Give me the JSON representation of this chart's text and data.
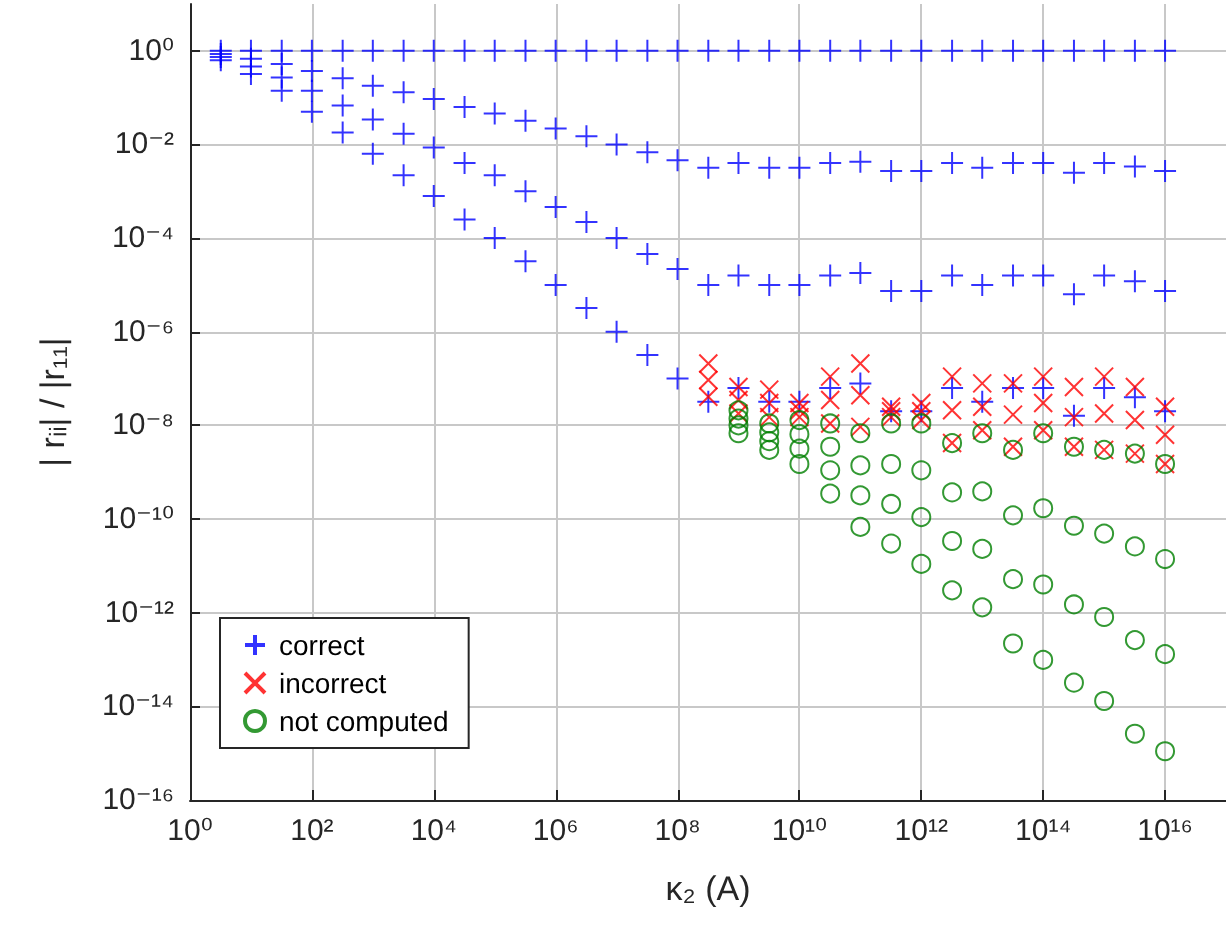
{
  "chart_data": {
    "type": "scatter",
    "xlabel": "κ₂ (A)",
    "ylabel": "| rᵢᵢ| / |r₁₁|",
    "log": "xy",
    "grid": true,
    "legend": "bottom left",
    "xlim": [
      1,
      1e+17
    ],
    "ylim": [
      1e-16,
      10
    ],
    "xticks": [
      {
        "value": 1,
        "label": "10⁰"
      },
      {
        "value": 100.0,
        "label": "10²"
      },
      {
        "value": 10000.0,
        "label": "10⁴"
      },
      {
        "value": 1000000.0,
        "label": "10⁶"
      },
      {
        "value": 100000000.0,
        "label": "10⁸"
      },
      {
        "value": 10000000000.0,
        "label": "10¹⁰"
      },
      {
        "value": 1000000000000.0,
        "label": "10¹²"
      },
      {
        "value": 100000000000000.0,
        "label": "10¹⁴"
      },
      {
        "value": 1e+16,
        "label": "10¹⁶"
      }
    ],
    "yticks": [
      {
        "value": 1e-16,
        "label": "10⁻¹⁶"
      },
      {
        "value": 1e-14,
        "label": "10⁻¹⁴"
      },
      {
        "value": 1e-12,
        "label": "10⁻¹²"
      },
      {
        "value": 1e-10,
        "label": "10⁻¹⁰"
      },
      {
        "value": 1e-08,
        "label": "10⁻⁸"
      },
      {
        "value": 1e-06,
        "label": "10⁻⁶"
      },
      {
        "value": 0.0001,
        "label": "10⁻⁴"
      },
      {
        "value": 0.01,
        "label": "10⁻²"
      },
      {
        "value": 1,
        "label": "10⁰"
      }
    ],
    "series": [
      {
        "name": "correct",
        "color": "#0000ff",
        "marker": "plus",
        "x": [
          3.2,
          3.2,
          3.2,
          3.2,
          10,
          10,
          10,
          10,
          32,
          32,
          32,
          32,
          100,
          100,
          100,
          100,
          320,
          320,
          320,
          320,
          1000,
          1000,
          1000,
          1000,
          3200,
          3200,
          3200,
          3200,
          10000.0,
          10000.0,
          10000.0,
          10000.0,
          32000.0,
          32000.0,
          32000.0,
          32000.0,
          100000.0,
          100000.0,
          100000.0,
          100000.0,
          320000.0,
          320000.0,
          320000.0,
          320000.0,
          1000000.0,
          1000000.0,
          1000000.0,
          1000000.0,
          3200000.0,
          3200000.0,
          3200000.0,
          3200000.0,
          10000000.0,
          10000000.0,
          10000000.0,
          10000000.0,
          32000000.0,
          32000000.0,
          32000000.0,
          32000000.0,
          100000000.0,
          100000000.0,
          100000000.0,
          100000000.0,
          320000000.0,
          320000000.0,
          320000000.0,
          320000000.0,
          1000000000.0,
          1000000000.0,
          1000000000.0,
          1000000000.0,
          3200000000.0,
          3200000000.0,
          3200000000.0,
          3200000000.0,
          10000000000.0,
          10000000000.0,
          10000000000.0,
          10000000000.0,
          32000000000.0,
          32000000000.0,
          32000000000.0,
          32000000000.0,
          100000000000.0,
          100000000000.0,
          100000000000.0,
          100000000000.0,
          320000000000.0,
          320000000000.0,
          320000000000.0,
          320000000000.0,
          1000000000000.0,
          1000000000000.0,
          1000000000000.0,
          1000000000000.0,
          3200000000000.0,
          3200000000000.0,
          3200000000000.0,
          3200000000000.0,
          10000000000000.0,
          10000000000000.0,
          10000000000000.0,
          10000000000000.0,
          32000000000000.0,
          32000000000000.0,
          32000000000000.0,
          32000000000000.0,
          100000000000000.0,
          100000000000000.0,
          100000000000000.0,
          100000000000000.0,
          320000000000000.0,
          320000000000000.0,
          320000000000000.0,
          320000000000000.0,
          1000000000000000.0,
          1000000000000000.0,
          1000000000000000.0,
          1000000000000000.0,
          3200000000000000.0,
          3200000000000000.0,
          3200000000000000.0,
          3200000000000000.0,
          1e+16,
          1e+16,
          1e+16,
          1e+16
        ],
        "values": [
          1,
          0.86,
          0.74,
          0.63,
          1,
          0.68,
          0.46,
          0.32,
          1,
          0.52,
          0.27,
          0.14,
          1,
          0.37,
          0.14,
          0.05,
          1,
          0.26,
          0.068,
          0.018,
          1,
          0.18,
          0.034,
          0.0063,
          1,
          0.13,
          0.017,
          0.0022,
          1,
          0.093,
          0.0086,
          0.00079,
          1,
          0.063,
          0.004,
          0.00025,
          1,
          0.046,
          0.0022,
          0.0001,
          1,
          0.032,
          0.001,
          3.2e-05,
          1,
          0.022,
          0.00046,
          1e-05,
          1,
          0.015,
          0.00022,
          3.2e-06,
          1,
          0.01,
          0.0001,
          1e-06,
          1,
          0.0068,
          4.6e-05,
          3.2e-07,
          1,
          0.0046,
          2.2e-05,
          1e-07,
          1,
          0.0032,
          1e-05,
          3.2e-08,
          1,
          0.004,
          1.6e-05,
          6.3e-08,
          1,
          0.0032,
          1e-05,
          3.2e-08,
          1,
          0.0032,
          1e-05,
          3.2e-08,
          1,
          0.004,
          1.6e-05,
          6.3e-08,
          1,
          0.0043,
          1.8e-05,
          7.9e-08,
          1,
          0.0027,
          7.4e-06,
          2e-08,
          1,
          0.0027,
          7.4e-06,
          2e-08,
          1,
          0.004,
          1.6e-05,
          6.3e-08,
          1,
          0.0032,
          1e-05,
          3.2e-08,
          1,
          0.004,
          1.6e-05,
          6.3e-08,
          1,
          0.004,
          1.6e-05,
          6.3e-08,
          1,
          0.0025,
          6.3e-06,
          1.6e-08,
          1,
          0.004,
          1.6e-05,
          6.3e-08,
          1,
          0.0034,
          1.2e-05,
          4e-08,
          1,
          0.0027,
          7.4e-06,
          2e-08
        ]
      },
      {
        "name": "incorrect",
        "color": "#ff0000",
        "marker": "cross",
        "x": [
          320000000.0,
          320000000.0,
          320000000.0,
          1000000000.0,
          1000000000.0,
          1000000000.0,
          3200000000.0,
          3200000000.0,
          3200000000.0,
          10000000000.0,
          10000000000.0,
          10000000000.0,
          32000000000.0,
          32000000000.0,
          32000000000.0,
          100000000000.0,
          100000000000.0,
          100000000000.0,
          320000000000.0,
          320000000000.0,
          320000000000.0,
          1000000000000.0,
          1000000000000.0,
          1000000000000.0,
          3200000000000.0,
          3200000000000.0,
          3200000000000.0,
          10000000000000.0,
          10000000000000.0,
          10000000000000.0,
          32000000000000.0,
          32000000000000.0,
          32000000000000.0,
          100000000000000.0,
          100000000000000.0,
          100000000000000.0,
          320000000000000.0,
          320000000000000.0,
          320000000000000.0,
          1000000000000000.0,
          1000000000000000.0,
          1000000000000000.0,
          3200000000000000.0,
          3200000000000000.0,
          3200000000000000.0,
          1e+16,
          1e+16,
          1e+16
        ],
        "values": [
          2.1e-07,
          9.3e-08,
          4.1e-08,
          6.6e-08,
          3.5e-08,
          1.8e-08,
          5.8e-08,
          3e-08,
          1.5e-08,
          3e-08,
          2.1e-08,
          1.5e-08,
          1.1e-07,
          3.5e-08,
          1.1e-08,
          2.1e-07,
          4.4e-08,
          9.3e-09,
          2.5e-08,
          2e-08,
          1.5e-08,
          3e-08,
          2e-08,
          1.3e-08,
          1.1e-07,
          2.1e-08,
          4.2e-09,
          7.9e-08,
          2.5e-08,
          7.9e-09,
          7.9e-08,
          1.7e-08,
          3.5e-09,
          1.1e-07,
          3e-08,
          7.9e-09,
          6.6e-08,
          1.5e-08,
          3.5e-09,
          1.1e-07,
          1.8e-08,
          3e-09,
          6.6e-08,
          1.3e-08,
          2.5e-09,
          2.5e-08,
          6.3e-09,
          1.5e-09
        ]
      },
      {
        "name": "not computed",
        "color": "#008000",
        "marker": "circle",
        "x": [
          1000000000.0,
          1000000000.0,
          1000000000.0,
          1000000000.0,
          3200000000.0,
          3200000000.0,
          3200000000.0,
          3200000000.0,
          10000000000.0,
          10000000000.0,
          10000000000.0,
          10000000000.0,
          32000000000.0,
          32000000000.0,
          32000000000.0,
          32000000000.0,
          100000000000.0,
          100000000000.0,
          100000000000.0,
          100000000000.0,
          320000000000.0,
          320000000000.0,
          320000000000.0,
          320000000000.0,
          1000000000000.0,
          1000000000000.0,
          1000000000000.0,
          1000000000000.0,
          3200000000000.0,
          3200000000000.0,
          3200000000000.0,
          3200000000000.0,
          10000000000000.0,
          10000000000000.0,
          10000000000000.0,
          10000000000000.0,
          32000000000000.0,
          32000000000000.0,
          32000000000000.0,
          32000000000000.0,
          100000000000000.0,
          100000000000000.0,
          100000000000000.0,
          100000000000000.0,
          320000000000000.0,
          320000000000000.0,
          320000000000000.0,
          320000000000000.0,
          1000000000000000.0,
          1000000000000000.0,
          1000000000000000.0,
          1000000000000000.0,
          3200000000000000.0,
          3200000000000000.0,
          3200000000000000.0,
          3200000000000000.0,
          1e+16,
          1e+16,
          1e+16,
          1e+16
        ],
        "values": [
          2.1e-08,
          1.4e-08,
          1e-08,
          6.8e-09,
          1.1e-08,
          7.1e-09,
          4.6e-09,
          3e-09,
          1.3e-08,
          6.5e-09,
          3.2e-09,
          1.5e-09,
          1.1e-08,
          3.5e-09,
          1.1e-09,
          3.5e-10,
          6.8e-09,
          1.4e-09,
          3.2e-10,
          6.8e-11,
          1.1e-08,
          1.5e-09,
          2.1e-10,
          3e-11,
          1.1e-08,
          1.1e-09,
          1.1e-10,
          1.1e-11,
          4.2e-09,
          3.7e-10,
          3.4e-11,
          3e-12,
          6.8e-09,
          3.9e-10,
          2.3e-11,
          1.3e-12,
          3e-09,
          1.2e-10,
          5.2e-12,
          2.2e-13,
          6.8e-09,
          1.7e-10,
          4e-12,
          9.8e-14,
          3.5e-09,
          7.2e-11,
          1.5e-12,
          3.2e-14,
          3e-09,
          4.9e-11,
          8.1e-13,
          1.3e-14,
          2.5e-09,
          2.6e-11,
          2.6e-13,
          2.6e-15,
          1.5e-09,
          1.4e-11,
          1.3e-13,
          1.1e-15
        ]
      }
    ]
  }
}
